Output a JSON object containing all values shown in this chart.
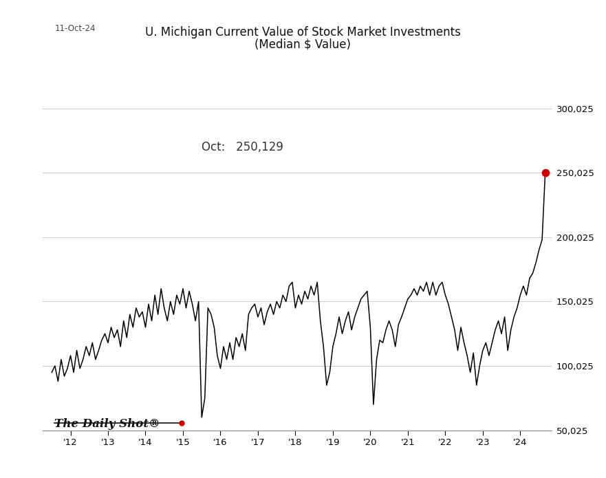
{
  "title_line1": "U. Michigan Current Value of Stock Market Investments",
  "title_line2": "(Median $ Value)",
  "date_label": "11-Oct-24",
  "annotation_label": "Oct:   250,129",
  "watermark": "The Daily Shot®",
  "last_value": 250129,
  "last_point_color": "#cc0000",
  "line_color": "#000000",
  "background_color": "#ffffff",
  "grid_color": "#c8c8c8",
  "ylim": [
    50025,
    310000
  ],
  "yticks": [
    50025,
    100025,
    150025,
    200025,
    250025,
    300025
  ],
  "ytick_labels": [
    "50,025",
    "100,025",
    "150,025",
    "200,025",
    "250,025",
    "300,025"
  ],
  "values": [
    95000,
    100000,
    88000,
    105000,
    92000,
    98000,
    108000,
    95000,
    112000,
    98000,
    105000,
    115000,
    108000,
    118000,
    105000,
    112000,
    120000,
    125000,
    118000,
    130000,
    122000,
    128000,
    115000,
    135000,
    122000,
    140000,
    130000,
    145000,
    138000,
    142000,
    130000,
    148000,
    135000,
    155000,
    140000,
    160000,
    145000,
    135000,
    150000,
    140000,
    155000,
    148000,
    160000,
    145000,
    158000,
    148000,
    135000,
    150000,
    60000,
    75000,
    145000,
    140000,
    130000,
    108000,
    98000,
    115000,
    105000,
    118000,
    105000,
    122000,
    115000,
    125000,
    112000,
    140000,
    145000,
    148000,
    138000,
    145000,
    132000,
    142000,
    148000,
    140000,
    150000,
    145000,
    155000,
    150000,
    162000,
    165000,
    145000,
    155000,
    148000,
    158000,
    152000,
    162000,
    155000,
    165000,
    135000,
    115000,
    85000,
    95000,
    115000,
    125000,
    138000,
    125000,
    135000,
    142000,
    128000,
    138000,
    145000,
    152000,
    155000,
    158000,
    130000,
    70000,
    105000,
    120000,
    118000,
    128000,
    135000,
    128000,
    115000,
    132000,
    138000,
    145000,
    152000,
    155000,
    160000,
    155000,
    162000,
    158000,
    165000,
    155000,
    165000,
    155000,
    162000,
    165000,
    155000,
    148000,
    138000,
    128000,
    112000,
    130000,
    118000,
    108000,
    95000,
    110000,
    85000,
    100000,
    112000,
    118000,
    108000,
    118000,
    128000,
    135000,
    125000,
    138000,
    112000,
    128000,
    138000,
    145000,
    155000,
    162000,
    155000,
    168000,
    172000,
    180000,
    190000,
    198000,
    250129
  ],
  "xtick_years": [
    "'12",
    "'13",
    "'14",
    "'15",
    "'16",
    "'17",
    "'18",
    "'19",
    "'20",
    "'21",
    "'22",
    "'23",
    "'24"
  ],
  "xtick_positions": [
    6,
    18,
    30,
    42,
    54,
    66,
    78,
    90,
    102,
    114,
    126,
    138,
    150
  ]
}
